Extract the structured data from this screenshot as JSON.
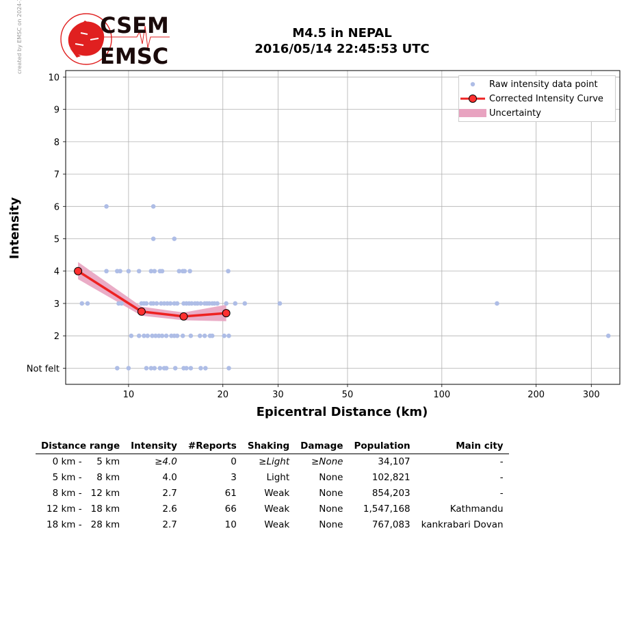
{
  "side_note": "created by EMSC on 2024-10-23 14:54:47 UTC",
  "logo": {
    "line1": "CSEM",
    "line2": "EMSC",
    "color": "#e02020"
  },
  "chart_data": {
    "type": "scatter",
    "title": "M4.5 in NEPAL",
    "subtitle": "2016/05/14 22:45:53 UTC",
    "xlabel": "Epicentral Distance (km)",
    "ylabel": "Intensity",
    "x_scale": "log",
    "xlim": [
      6.3,
      370
    ],
    "ylim": [
      0.5,
      10.2
    ],
    "x_ticks": [
      10,
      20,
      30,
      50,
      100,
      200,
      300
    ],
    "y_ticks": [
      1,
      2,
      3,
      4,
      5,
      6,
      7,
      8,
      9,
      10
    ],
    "y_tick_labels": [
      "Not felt",
      "2",
      "3",
      "4",
      "5",
      "6",
      "7",
      "8",
      "9",
      "10"
    ],
    "grid": true,
    "legend_position": "top-right",
    "legend": [
      "Raw intensity data point",
      "Corrected Intensity Curve",
      "Uncertainty"
    ],
    "colors": {
      "raw": "#aebde6",
      "curve": "#ee2222",
      "marker": "#ff3030",
      "band": "#e8a3c0",
      "grid": "#b0b0b0"
    },
    "raw_points": [
      [
        8.5,
        6
      ],
      [
        12.0,
        6
      ],
      [
        12.0,
        5
      ],
      [
        14.0,
        5
      ],
      [
        8.5,
        4
      ],
      [
        9.2,
        4
      ],
      [
        9.4,
        4
      ],
      [
        10.0,
        4
      ],
      [
        10.8,
        4
      ],
      [
        11.8,
        4
      ],
      [
        12.1,
        4
      ],
      [
        12.6,
        4
      ],
      [
        12.8,
        4
      ],
      [
        14.5,
        4
      ],
      [
        14.9,
        4
      ],
      [
        15.1,
        4
      ],
      [
        15.7,
        4
      ],
      [
        20.8,
        4
      ],
      [
        7.1,
        3
      ],
      [
        7.4,
        3
      ],
      [
        9.3,
        3
      ],
      [
        9.5,
        3
      ],
      [
        11.0,
        3
      ],
      [
        11.2,
        3
      ],
      [
        11.4,
        3
      ],
      [
        11.8,
        3
      ],
      [
        12.0,
        3
      ],
      [
        12.3,
        3
      ],
      [
        12.7,
        3
      ],
      [
        13.0,
        3
      ],
      [
        13.3,
        3
      ],
      [
        13.6,
        3
      ],
      [
        14.0,
        3
      ],
      [
        14.3,
        3
      ],
      [
        15.0,
        3
      ],
      [
        15.3,
        3
      ],
      [
        15.6,
        3
      ],
      [
        15.9,
        3
      ],
      [
        16.3,
        3
      ],
      [
        16.6,
        3
      ],
      [
        17.0,
        3
      ],
      [
        17.5,
        3
      ],
      [
        17.8,
        3
      ],
      [
        18.1,
        3
      ],
      [
        18.5,
        3
      ],
      [
        18.8,
        3
      ],
      [
        19.2,
        3
      ],
      [
        20.5,
        3
      ],
      [
        21.9,
        3
      ],
      [
        23.5,
        3
      ],
      [
        30.4,
        3
      ],
      [
        150.0,
        3
      ],
      [
        10.2,
        2
      ],
      [
        10.8,
        2
      ],
      [
        11.2,
        2
      ],
      [
        11.5,
        2
      ],
      [
        11.9,
        2
      ],
      [
        12.2,
        2
      ],
      [
        12.5,
        2
      ],
      [
        12.8,
        2
      ],
      [
        13.2,
        2
      ],
      [
        13.7,
        2
      ],
      [
        14.0,
        2
      ],
      [
        14.3,
        2
      ],
      [
        14.9,
        2
      ],
      [
        15.8,
        2
      ],
      [
        16.9,
        2
      ],
      [
        17.5,
        2
      ],
      [
        18.2,
        2
      ],
      [
        18.5,
        2
      ],
      [
        20.2,
        2
      ],
      [
        20.9,
        2
      ],
      [
        340.0,
        2
      ],
      [
        9.2,
        1
      ],
      [
        10.0,
        1
      ],
      [
        11.4,
        1
      ],
      [
        11.8,
        1
      ],
      [
        12.1,
        1
      ],
      [
        12.6,
        1
      ],
      [
        13.0,
        1
      ],
      [
        13.2,
        1
      ],
      [
        14.1,
        1
      ],
      [
        15.0,
        1
      ],
      [
        15.3,
        1
      ],
      [
        15.8,
        1
      ],
      [
        17.0,
        1
      ],
      [
        17.6,
        1
      ],
      [
        20.9,
        1
      ]
    ],
    "curve": {
      "x": [
        6.9,
        11.0,
        15.0,
        20.5
      ],
      "y": [
        4.0,
        2.75,
        2.6,
        2.7
      ]
    },
    "uncertainty": {
      "x": [
        6.9,
        11.0,
        15.0,
        20.5
      ],
      "low": [
        3.75,
        2.62,
        2.48,
        2.45
      ],
      "high": [
        4.28,
        2.9,
        2.72,
        2.96
      ]
    }
  },
  "table": {
    "headers": [
      "Distance range",
      "Intensity",
      "#Reports",
      "Shaking",
      "Damage",
      "Population",
      "Main city"
    ],
    "rows": [
      {
        "from": "0 km -",
        "to": "5 km",
        "intensity": "≥4.0",
        "reports": "0",
        "shaking": "≥Light",
        "damage": "≥None",
        "population": "34,107",
        "city": "-",
        "italic": true
      },
      {
        "from": "5 km -",
        "to": "8 km",
        "intensity": "4.0",
        "reports": "3",
        "shaking": "Light",
        "damage": "None",
        "population": "102,821",
        "city": "-",
        "italic": false
      },
      {
        "from": "8 km -",
        "to": "12 km",
        "intensity": "2.7",
        "reports": "61",
        "shaking": "Weak",
        "damage": "None",
        "population": "854,203",
        "city": "-",
        "italic": false
      },
      {
        "from": "12 km -",
        "to": "18 km",
        "intensity": "2.6",
        "reports": "66",
        "shaking": "Weak",
        "damage": "None",
        "population": "1,547,168",
        "city": "Kathmandu",
        "italic": false
      },
      {
        "from": "18 km -",
        "to": "28 km",
        "intensity": "2.7",
        "reports": "10",
        "shaking": "Weak",
        "damage": "None",
        "population": "767,083",
        "city": "kankrabari Dovan",
        "italic": false
      }
    ]
  }
}
